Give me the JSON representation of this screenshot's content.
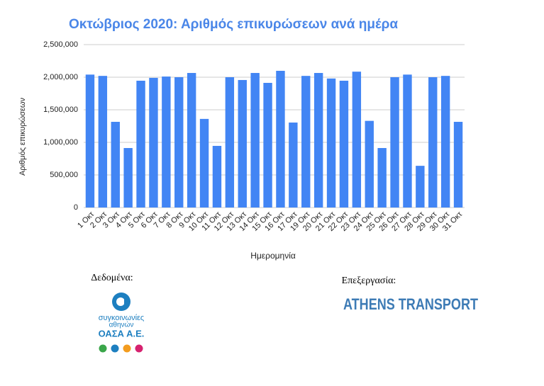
{
  "chart_data": {
    "type": "bar",
    "title": "Οκτώβριος 2020: Αριθμός επικυρώσεων ανά ημέρα",
    "x_label": "Ημερομηνία",
    "y_label": "Αριθμός επικυρώσεων",
    "categories": [
      "1 Οκτ",
      "2 Οκτ",
      "3 Οκτ",
      "4 Οκτ",
      "5 Οκτ",
      "6 Οκτ",
      "7 Οκτ",
      "8 Οκτ",
      "9 Οκτ",
      "10 Οκτ",
      "11 Οκτ",
      "12 Οκτ",
      "13 Οκτ",
      "14 Οκτ",
      "15 Οκτ",
      "16 Οκτ",
      "17 Οκτ",
      "19 Οκτ",
      "20 Οκτ",
      "21 Οκτ",
      "22 Οκτ",
      "23 Οκτ",
      "24 Οκτ",
      "25 Οκτ",
      "26 Οκτ",
      "27 Οκτ",
      "28 Οκτ",
      "29 Οκτ",
      "30 Οκτ",
      "31 Οκτ"
    ],
    "values": [
      2040000,
      2020000,
      1315000,
      913000,
      1946000,
      1990000,
      2010000,
      2000000,
      2065000,
      1360000,
      946000,
      2000000,
      1957000,
      2065000,
      1913000,
      2098000,
      1304000,
      2020000,
      2065000,
      1980000,
      1946000,
      2085000,
      1330000,
      913000,
      2000000,
      2040000,
      640000,
      2000000,
      2020000,
      1315000
    ],
    "color": "#4285f4",
    "ylim": [
      0,
      2500000
    ],
    "yticks": [
      0,
      {
        "value": 500000,
        "label": "500,000"
      },
      {
        "value": 1000000,
        "label": "1,000,000"
      },
      {
        "value": 1500000,
        "label": "1,500,000"
      },
      {
        "value": 2000000,
        "label": "2,000,000"
      },
      {
        "value": 2500000,
        "label": "2,500,000"
      }
    ],
    "grid": true
  },
  "credits": {
    "data_label": "Δεδομένα:",
    "logo_line1": "συγκοινωνίες",
    "logo_line2": "αθηνών",
    "logo_name": "ΟΑΣΑ Α.Ε.",
    "processing_label": "Επεξεργασία:",
    "processor": "ATHENS TRANSPORT"
  }
}
